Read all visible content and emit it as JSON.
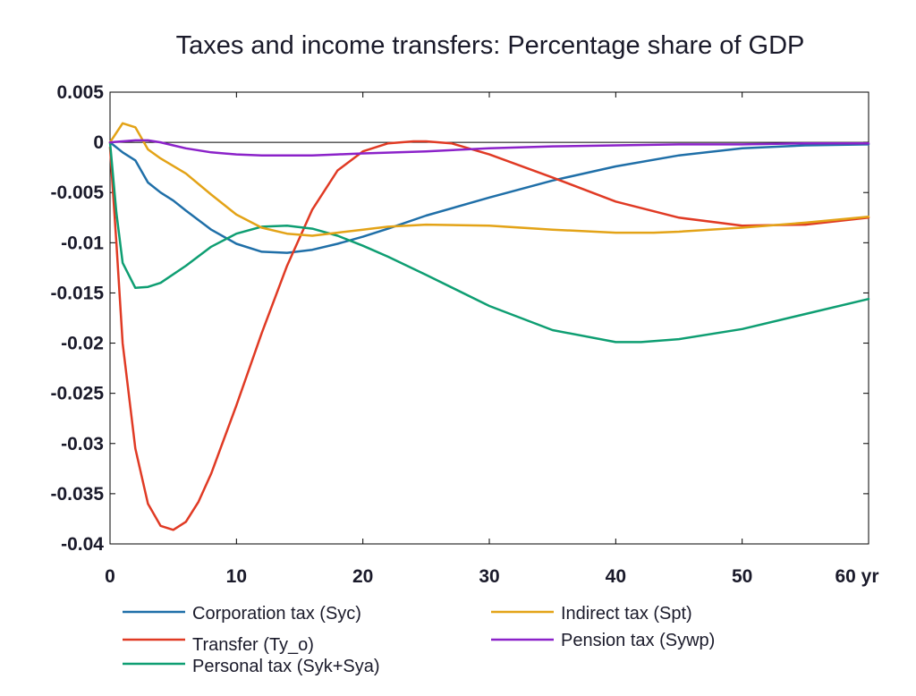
{
  "chart_data": {
    "type": "line",
    "title": "Taxes and income transfers: Percentage share of GDP",
    "xlabel": "",
    "ylabel": "",
    "xlim": [
      0,
      60
    ],
    "ylim": [
      -0.04,
      0.005
    ],
    "x_ticks": [
      {
        "value": 0,
        "label": "0"
      },
      {
        "value": 10,
        "label": "10"
      },
      {
        "value": 20,
        "label": "20"
      },
      {
        "value": 30,
        "label": "30"
      },
      {
        "value": 40,
        "label": "40"
      },
      {
        "value": 50,
        "label": "50"
      },
      {
        "value": 60,
        "label": "60 yr"
      }
    ],
    "y_ticks": [
      {
        "value": 0.005,
        "label": "0.005"
      },
      {
        "value": 0,
        "label": "0"
      },
      {
        "value": -0.005,
        "label": "-0.005"
      },
      {
        "value": -0.01,
        "label": "-0.01"
      },
      {
        "value": -0.015,
        "label": "-0.015"
      },
      {
        "value": -0.02,
        "label": "-0.02"
      },
      {
        "value": -0.025,
        "label": "-0.025"
      },
      {
        "value": -0.03,
        "label": "-0.03"
      },
      {
        "value": -0.035,
        "label": "-0.035"
      },
      {
        "value": -0.04,
        "label": "-0.04"
      }
    ],
    "zero_line": true,
    "grid": false,
    "legend_position": "bottom",
    "series": [
      {
        "name": "Corporation tax (Syc)",
        "color": "#1f6fa8",
        "x": [
          0,
          1,
          2,
          3,
          4,
          5,
          6,
          8,
          10,
          12,
          14,
          16,
          18,
          20,
          22,
          25,
          30,
          35,
          40,
          45,
          50,
          55,
          60
        ],
        "y": [
          0,
          -0.001,
          -0.0018,
          -0.004,
          -0.005,
          -0.0058,
          -0.0068,
          -0.0087,
          -0.0101,
          -0.0109,
          -0.011,
          -0.0107,
          -0.0101,
          -0.0094,
          -0.0086,
          -0.0073,
          -0.0055,
          -0.0038,
          -0.0024,
          -0.0013,
          -0.0006,
          -0.0003,
          -0.0002
        ]
      },
      {
        "name": "Transfer (Ty_o)",
        "color": "#e03a24",
        "x": [
          0,
          0.5,
          1,
          2,
          3,
          4,
          5,
          6,
          7,
          8,
          10,
          12,
          14,
          16,
          18,
          20,
          22,
          24,
          25,
          27,
          30,
          35,
          40,
          45,
          50,
          55,
          60
        ],
        "y": [
          -0.0005,
          -0.01,
          -0.02,
          -0.0305,
          -0.036,
          -0.0382,
          -0.0386,
          -0.0378,
          -0.0358,
          -0.033,
          -0.0262,
          -0.019,
          -0.0123,
          -0.0067,
          -0.0028,
          -0.0009,
          -0.0001,
          0.0001,
          0.0001,
          -0.0001,
          -0.0012,
          -0.0035,
          -0.0059,
          -0.0075,
          -0.0083,
          -0.0082,
          -0.0075
        ]
      },
      {
        "name": "Personal tax (Syk+Sya)",
        "color": "#0e9e72",
        "x": [
          0,
          0.5,
          1,
          2,
          3,
          4,
          6,
          8,
          10,
          12,
          14,
          16,
          18,
          20,
          22,
          25,
          30,
          35,
          40,
          42,
          45,
          50,
          55,
          60
        ],
        "y": [
          0,
          -0.007,
          -0.012,
          -0.0145,
          -0.0144,
          -0.014,
          -0.0123,
          -0.0104,
          -0.0091,
          -0.0084,
          -0.0083,
          -0.0086,
          -0.0093,
          -0.0103,
          -0.0114,
          -0.0132,
          -0.0163,
          -0.0187,
          -0.0199,
          -0.0199,
          -0.0196,
          -0.0186,
          -0.0171,
          -0.0156
        ]
      },
      {
        "name": "Indirect tax (Spt)",
        "color": "#e3a317",
        "x": [
          0,
          1,
          2,
          3,
          4,
          6,
          8,
          10,
          12,
          14,
          16,
          18,
          20,
          22,
          25,
          30,
          35,
          40,
          43,
          45,
          50,
          55,
          60
        ],
        "y": [
          0,
          0.0019,
          0.0015,
          -0.0007,
          -0.0016,
          -0.0031,
          -0.0052,
          -0.0072,
          -0.0085,
          -0.0091,
          -0.0093,
          -0.009,
          -0.0087,
          -0.0084,
          -0.0082,
          -0.0083,
          -0.0087,
          -0.009,
          -0.009,
          -0.0089,
          -0.0085,
          -0.008,
          -0.0074
        ]
      },
      {
        "name": "Pension tax (Sywp)",
        "color": "#8b22c9",
        "x": [
          0,
          1,
          2,
          3,
          4,
          5,
          6,
          8,
          10,
          12,
          14,
          16,
          18,
          20,
          25,
          30,
          35,
          40,
          45,
          50,
          55,
          60
        ],
        "y": [
          0,
          0.0001,
          0.0002,
          0.0002,
          0,
          -0.0003,
          -0.0006,
          -0.001,
          -0.0012,
          -0.0013,
          -0.0013,
          -0.0013,
          -0.0012,
          -0.0011,
          -0.0009,
          -0.0006,
          -0.0004,
          -0.0003,
          -0.0002,
          -0.0002,
          -0.0001,
          -0.0001
        ]
      }
    ]
  }
}
